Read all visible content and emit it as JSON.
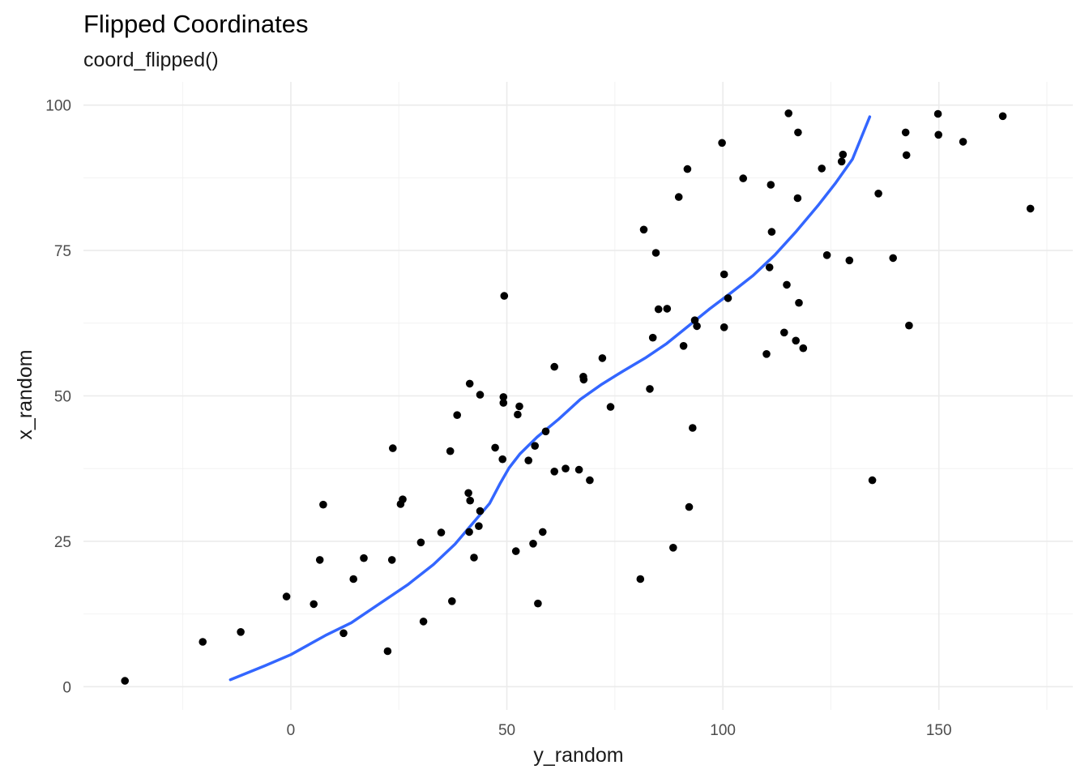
{
  "chart_data": {
    "type": "scatter",
    "title": "Flipped Coordinates",
    "subtitle": "coord_flipped()",
    "xlabel": "y_random",
    "ylabel": "x_random",
    "xlim": [
      -48,
      181
    ],
    "ylim": [
      -4,
      104
    ],
    "x_ticks": [
      0,
      50,
      100,
      150
    ],
    "x_tick_labels": [
      "0",
      "50",
      "100",
      "150"
    ],
    "y_ticks": [
      0,
      25,
      50,
      75,
      100
    ],
    "y_tick_labels": [
      "0",
      "25",
      "50",
      "75",
      "100"
    ],
    "grid": true,
    "legend": "none",
    "point_color": "#000000",
    "smooth_color": "#3366ff",
    "points": [
      [
        -38.4,
        1.0
      ],
      [
        -20.4,
        7.7
      ],
      [
        -11.6,
        9.4
      ],
      [
        -1.0,
        15.5
      ],
      [
        5.3,
        14.2
      ],
      [
        6.7,
        21.8
      ],
      [
        7.5,
        31.3
      ],
      [
        12.2,
        9.2
      ],
      [
        14.5,
        18.5
      ],
      [
        16.9,
        22.1
      ],
      [
        22.4,
        6.1
      ],
      [
        23.4,
        21.8
      ],
      [
        23.6,
        41.0
      ],
      [
        25.4,
        31.4
      ],
      [
        25.9,
        32.2
      ],
      [
        30.1,
        24.8
      ],
      [
        30.7,
        11.2
      ],
      [
        34.8,
        26.5
      ],
      [
        36.9,
        40.5
      ],
      [
        37.3,
        14.7
      ],
      [
        38.5,
        46.7
      ],
      [
        41.1,
        33.3
      ],
      [
        41.3,
        26.6
      ],
      [
        41.4,
        52.1
      ],
      [
        41.5,
        32.0
      ],
      [
        42.4,
        22.2
      ],
      [
        43.5,
        27.6
      ],
      [
        43.8,
        30.2
      ],
      [
        43.8,
        50.2
      ],
      [
        47.3,
        41.1
      ],
      [
        49.0,
        39.1
      ],
      [
        49.2,
        49.8
      ],
      [
        49.2,
        48.8
      ],
      [
        49.4,
        67.2
      ],
      [
        52.1,
        23.3
      ],
      [
        52.5,
        46.8
      ],
      [
        52.9,
        48.2
      ],
      [
        55.0,
        38.9
      ],
      [
        56.1,
        24.6
      ],
      [
        56.5,
        41.4
      ],
      [
        57.2,
        14.3
      ],
      [
        58.3,
        26.6
      ],
      [
        59.0,
        43.9
      ],
      [
        61.0,
        55.0
      ],
      [
        61.0,
        37.0
      ],
      [
        63.6,
        37.5
      ],
      [
        66.7,
        37.3
      ],
      [
        67.7,
        53.3
      ],
      [
        67.8,
        52.8
      ],
      [
        69.2,
        35.5
      ],
      [
        72.1,
        56.5
      ],
      [
        74.0,
        48.1
      ],
      [
        80.9,
        18.5
      ],
      [
        81.7,
        78.6
      ],
      [
        83.1,
        51.2
      ],
      [
        83.8,
        60.0
      ],
      [
        84.5,
        74.6
      ],
      [
        85.1,
        64.9
      ],
      [
        87.1,
        65.0
      ],
      [
        88.5,
        23.9
      ],
      [
        89.8,
        84.2
      ],
      [
        90.9,
        58.6
      ],
      [
        91.8,
        89.0
      ],
      [
        92.2,
        30.9
      ],
      [
        93.0,
        44.5
      ],
      [
        93.5,
        63.0
      ],
      [
        94.0,
        62.0
      ],
      [
        99.8,
        93.5
      ],
      [
        100.3,
        70.9
      ],
      [
        100.3,
        61.8
      ],
      [
        101.2,
        66.8
      ],
      [
        104.7,
        87.4
      ],
      [
        110.1,
        57.2
      ],
      [
        110.8,
        72.1
      ],
      [
        111.1,
        86.3
      ],
      [
        111.3,
        78.2
      ],
      [
        114.2,
        60.9
      ],
      [
        114.8,
        69.1
      ],
      [
        115.2,
        98.6
      ],
      [
        116.9,
        59.5
      ],
      [
        117.3,
        84.0
      ],
      [
        117.4,
        95.3
      ],
      [
        117.6,
        66.0
      ],
      [
        118.6,
        58.2
      ],
      [
        122.9,
        89.1
      ],
      [
        124.1,
        74.2
      ],
      [
        127.5,
        90.3
      ],
      [
        127.8,
        91.5
      ],
      [
        129.3,
        73.3
      ],
      [
        134.6,
        35.5
      ],
      [
        136.0,
        84.8
      ],
      [
        139.4,
        73.7
      ],
      [
        142.3,
        95.3
      ],
      [
        142.5,
        91.4
      ],
      [
        143.1,
        62.1
      ],
      [
        149.8,
        98.5
      ],
      [
        149.9,
        94.9
      ],
      [
        155.6,
        93.7
      ],
      [
        164.8,
        98.1
      ],
      [
        171.2,
        82.2
      ]
    ],
    "smooth_line": [
      [
        -14.0,
        1.2
      ],
      [
        -6.0,
        3.6
      ],
      [
        0.0,
        5.5
      ],
      [
        8.0,
        8.8
      ],
      [
        14.0,
        11.0
      ],
      [
        20.0,
        14.0
      ],
      [
        27.0,
        17.5
      ],
      [
        33.0,
        21.0
      ],
      [
        38.0,
        24.5
      ],
      [
        42.0,
        28.0
      ],
      [
        46.0,
        31.5
      ],
      [
        48.5,
        35.0
      ],
      [
        50.5,
        37.6
      ],
      [
        53.0,
        40.0
      ],
      [
        57.0,
        42.9
      ],
      [
        62.0,
        46.0
      ],
      [
        67.0,
        49.4
      ],
      [
        72.0,
        52.0
      ],
      [
        77.0,
        54.3
      ],
      [
        82.0,
        56.5
      ],
      [
        87.0,
        59.0
      ],
      [
        92.0,
        62.0
      ],
      [
        97.0,
        65.0
      ],
      [
        102.0,
        67.8
      ],
      [
        107.0,
        70.7
      ],
      [
        112.0,
        74.2
      ],
      [
        117.0,
        78.3
      ],
      [
        122.0,
        82.7
      ],
      [
        126.0,
        86.5
      ],
      [
        130.0,
        90.7
      ],
      [
        134.0,
        98.0
      ]
    ]
  }
}
